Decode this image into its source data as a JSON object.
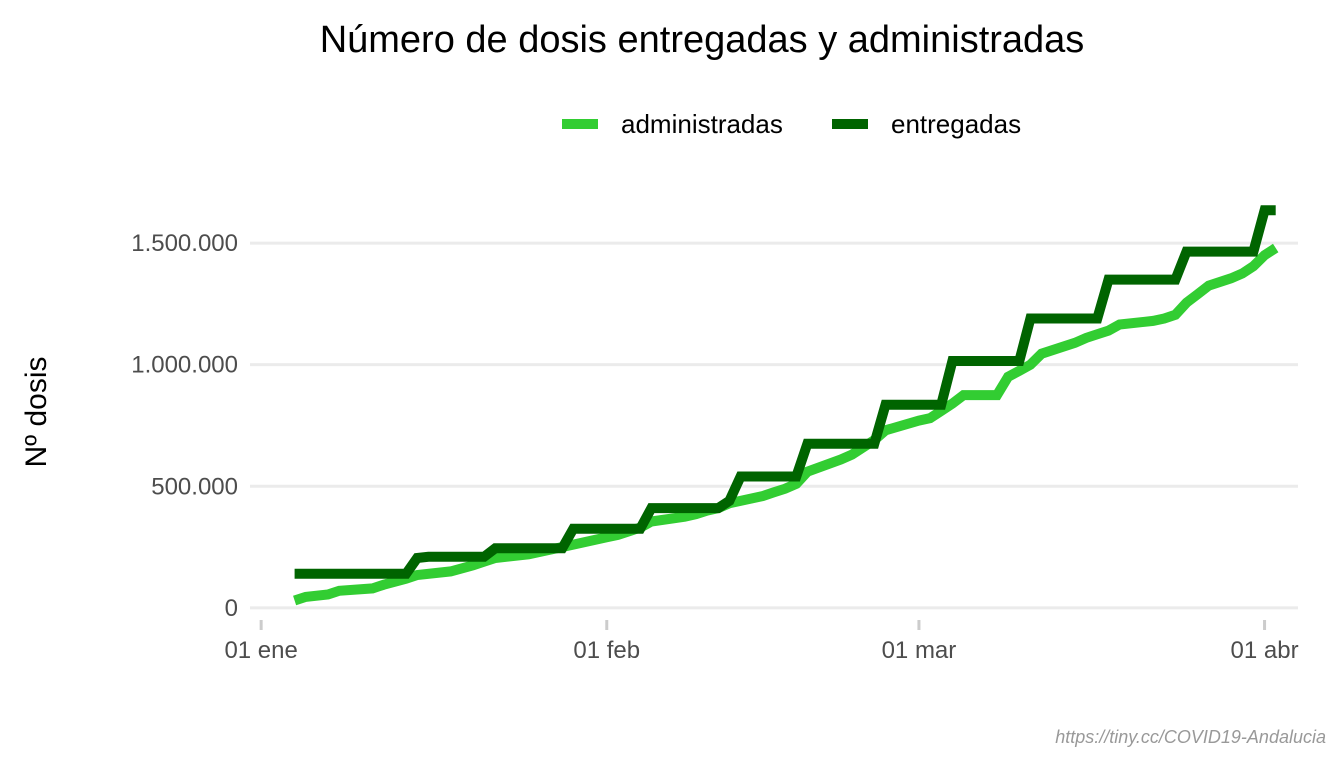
{
  "chart_data": {
    "type": "line",
    "title": "Número de dosis entregadas y administradas",
    "xlabel": "",
    "ylabel": "Nº dosis",
    "caption": "https://tiny.cc/COVID19-Andalucia",
    "x_axis": {
      "ticks": [
        {
          "date": "2021-01-01",
          "label": "01 ene"
        },
        {
          "date": "2021-02-01",
          "label": "01 feb"
        },
        {
          "date": "2021-03-01",
          "label": "01 mar"
        },
        {
          "date": "2021-04-01",
          "label": "01 abr"
        }
      ],
      "range": [
        "2020-12-31",
        "2021-04-04"
      ]
    },
    "y_axis": {
      "ticks": [
        {
          "value": 0,
          "label": "0"
        },
        {
          "value": 500000,
          "label": "500.000"
        },
        {
          "value": 1000000,
          "label": "1.000.000"
        },
        {
          "value": 1500000,
          "label": "1.500.000"
        }
      ],
      "range": [
        -50000,
        1780000
      ]
    },
    "grid": true,
    "legend_position": "top",
    "legend": [
      {
        "name": "administradas",
        "color": "#32CD32"
      },
      {
        "name": "entregadas",
        "color": "#006400"
      }
    ],
    "series": [
      {
        "name": "administradas",
        "color": "#32CD32",
        "points": [
          [
            "2021-01-04",
            30000
          ],
          [
            "2021-01-05",
            45000
          ],
          [
            "2021-01-07",
            55000
          ],
          [
            "2021-01-08",
            70000
          ],
          [
            "2021-01-11",
            80000
          ],
          [
            "2021-01-12",
            95000
          ],
          [
            "2021-01-14",
            120000
          ],
          [
            "2021-01-15",
            135000
          ],
          [
            "2021-01-18",
            150000
          ],
          [
            "2021-01-20",
            175000
          ],
          [
            "2021-01-21",
            190000
          ],
          [
            "2021-01-22",
            205000
          ],
          [
            "2021-01-25",
            220000
          ],
          [
            "2021-01-27",
            240000
          ],
          [
            "2021-01-29",
            260000
          ],
          [
            "2021-02-01",
            290000
          ],
          [
            "2021-02-02",
            300000
          ],
          [
            "2021-02-03",
            315000
          ],
          [
            "2021-02-04",
            330000
          ],
          [
            "2021-02-05",
            355000
          ],
          [
            "2021-02-08",
            375000
          ],
          [
            "2021-02-09",
            385000
          ],
          [
            "2021-02-10",
            400000
          ],
          [
            "2021-02-11",
            410000
          ],
          [
            "2021-02-12",
            430000
          ],
          [
            "2021-02-15",
            460000
          ],
          [
            "2021-02-16",
            475000
          ],
          [
            "2021-02-17",
            490000
          ],
          [
            "2021-02-18",
            510000
          ],
          [
            "2021-02-19",
            560000
          ],
          [
            "2021-02-22",
            610000
          ],
          [
            "2021-02-23",
            630000
          ],
          [
            "2021-02-24",
            660000
          ],
          [
            "2021-02-25",
            690000
          ],
          [
            "2021-02-26",
            730000
          ],
          [
            "2021-03-01",
            770000
          ],
          [
            "2021-03-02",
            780000
          ],
          [
            "2021-03-03",
            810000
          ],
          [
            "2021-03-04",
            840000
          ],
          [
            "2021-03-05",
            875000
          ],
          [
            "2021-03-08",
            875000
          ],
          [
            "2021-03-09",
            950000
          ],
          [
            "2021-03-10",
            975000
          ],
          [
            "2021-03-11",
            1000000
          ],
          [
            "2021-03-12",
            1045000
          ],
          [
            "2021-03-15",
            1090000
          ],
          [
            "2021-03-16",
            1110000
          ],
          [
            "2021-03-17",
            1125000
          ],
          [
            "2021-03-18",
            1140000
          ],
          [
            "2021-03-19",
            1165000
          ],
          [
            "2021-03-22",
            1180000
          ],
          [
            "2021-03-23",
            1190000
          ],
          [
            "2021-03-24",
            1205000
          ],
          [
            "2021-03-25",
            1255000
          ],
          [
            "2021-03-26",
            1290000
          ],
          [
            "2021-03-27",
            1325000
          ],
          [
            "2021-03-29",
            1355000
          ],
          [
            "2021-03-30",
            1375000
          ],
          [
            "2021-03-31",
            1405000
          ],
          [
            "2021-04-01",
            1450000
          ],
          [
            "2021-04-02",
            1480000
          ]
        ]
      },
      {
        "name": "entregadas",
        "color": "#006400",
        "points": [
          [
            "2021-01-04",
            140000
          ],
          [
            "2021-01-14",
            140000
          ],
          [
            "2021-01-15",
            205000
          ],
          [
            "2021-01-16",
            210000
          ],
          [
            "2021-01-21",
            210000
          ],
          [
            "2021-01-22",
            245000
          ],
          [
            "2021-01-28",
            245000
          ],
          [
            "2021-01-29",
            325000
          ],
          [
            "2021-02-04",
            325000
          ],
          [
            "2021-02-05",
            410000
          ],
          [
            "2021-02-11",
            410000
          ],
          [
            "2021-02-12",
            440000
          ],
          [
            "2021-02-13",
            540000
          ],
          [
            "2021-02-18",
            540000
          ],
          [
            "2021-02-19",
            675000
          ],
          [
            "2021-02-25",
            675000
          ],
          [
            "2021-02-26",
            835000
          ],
          [
            "2021-03-03",
            835000
          ],
          [
            "2021-03-04",
            1015000
          ],
          [
            "2021-03-10",
            1015000
          ],
          [
            "2021-03-11",
            1190000
          ],
          [
            "2021-03-17",
            1190000
          ],
          [
            "2021-03-18",
            1350000
          ],
          [
            "2021-03-24",
            1350000
          ],
          [
            "2021-03-25",
            1465000
          ],
          [
            "2021-03-31",
            1465000
          ],
          [
            "2021-04-01",
            1635000
          ],
          [
            "2021-04-02",
            1635000
          ]
        ]
      }
    ]
  }
}
